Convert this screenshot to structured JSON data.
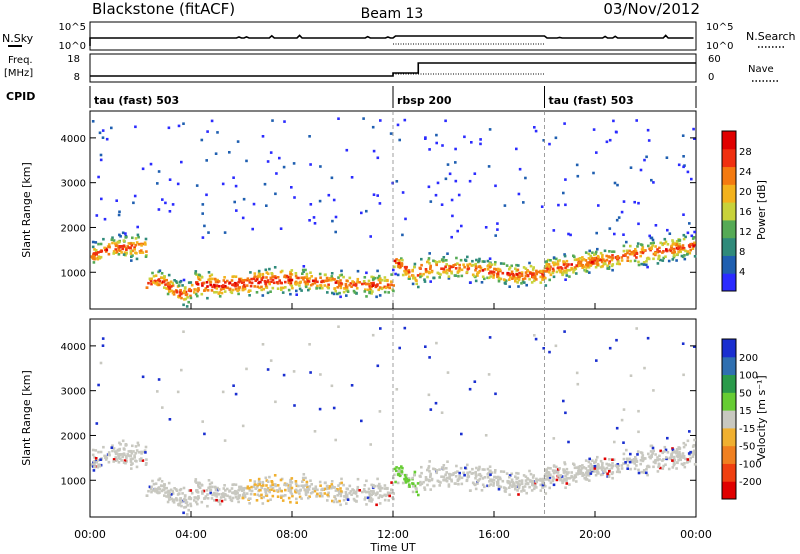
{
  "header": {
    "title": "Blackstone (fitACF)",
    "beam": "Beam 13",
    "date": "03/Nov/2012"
  },
  "top_panels": {
    "nsky_label": "N.Sky",
    "nsky_ticks": [
      "10^5",
      "10^0"
    ],
    "nsearch_label": "N.Search",
    "nsearch_ticks": [
      "10^5",
      "10^0"
    ],
    "freq_label_line1": "Freq.",
    "freq_label_line2": "[MHz]",
    "freq_ticks": [
      "18",
      "8"
    ],
    "nave_label": "Nave",
    "nave_ticks": [
      "60",
      "0"
    ],
    "cpid_label": "CPID",
    "cpid_segments": [
      {
        "label": "tau (fast) 503",
        "start_h": 0,
        "end_h": 12
      },
      {
        "label": "rbsp 200",
        "start_h": 12,
        "end_h": 18
      },
      {
        "label": "tau (fast) 503",
        "start_h": 18,
        "end_h": 24
      }
    ]
  },
  "chart_data": [
    {
      "type": "heatmap",
      "panel": "power",
      "ylabel": "Slant Range [km]",
      "colorbar_label": "Power [dB]",
      "x_range_h": [
        0,
        24
      ],
      "ylim": [
        180,
        4600
      ],
      "y_ticks": [
        1000,
        2000,
        3000,
        4000
      ],
      "colorbar_ticks": [
        "4",
        "8",
        "12",
        "16",
        "20",
        "24",
        "28"
      ],
      "colorbar_colors": [
        "#2b2bff",
        "#1f5fb0",
        "#2f8a7a",
        "#55aa55",
        "#c8d23a",
        "#f3b21c",
        "#f47a10",
        "#f03010",
        "#e00000"
      ]
    },
    {
      "type": "heatmap",
      "panel": "velocity",
      "ylabel": "Slant Range [km]",
      "colorbar_label": "Velocity [m s⁻¹]",
      "x_range_h": [
        0,
        24
      ],
      "ylim": [
        180,
        4600
      ],
      "y_ticks": [
        1000,
        2000,
        3000,
        4000
      ],
      "colorbar_ticks": [
        "200",
        "100",
        "50",
        "15",
        "-15",
        "-50",
        "-100",
        "-200"
      ],
      "colorbar_colors": [
        "#1a2fd0",
        "#2f6fb0",
        "#2a9a4a",
        "#66cc33",
        "#c8c8c0",
        "#f0b030",
        "#f08020",
        "#f04010",
        "#e00000"
      ]
    }
  ],
  "x_axis": {
    "ticks": [
      "00:00",
      "04:00",
      "08:00",
      "12:00",
      "16:00",
      "20:00",
      "00:00"
    ],
    "label": "Time UT"
  }
}
